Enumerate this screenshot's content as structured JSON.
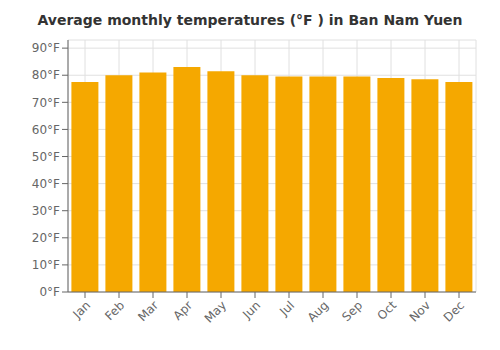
{
  "chart_data": {
    "type": "bar",
    "title": "Average monthly temperatures (°F ) in Ban Nam Yuen",
    "categories": [
      "Jan",
      "Feb",
      "Mar",
      "Apr",
      "May",
      "Jun",
      "Jul",
      "Aug",
      "Sep",
      "Oct",
      "Nov",
      "Dec"
    ],
    "values": [
      77.5,
      80.0,
      81.0,
      83.0,
      81.5,
      80.0,
      79.5,
      79.5,
      79.5,
      79.0,
      78.5,
      77.5
    ],
    "color": "#F5A800",
    "ylim": [
      0,
      93
    ],
    "yticks": [
      {
        "value": 0,
        "label": "0°F"
      },
      {
        "value": 10,
        "label": "10°F"
      },
      {
        "value": 20,
        "label": "20°F"
      },
      {
        "value": 30,
        "label": "30°F"
      },
      {
        "value": 40,
        "label": "40°F"
      },
      {
        "value": 50,
        "label": "50°F"
      },
      {
        "value": 60,
        "label": "60°F"
      },
      {
        "value": 70,
        "label": "70°F"
      },
      {
        "value": 80,
        "label": "80°F"
      },
      {
        "value": 90,
        "label": "90°F"
      }
    ],
    "grid": true
  }
}
